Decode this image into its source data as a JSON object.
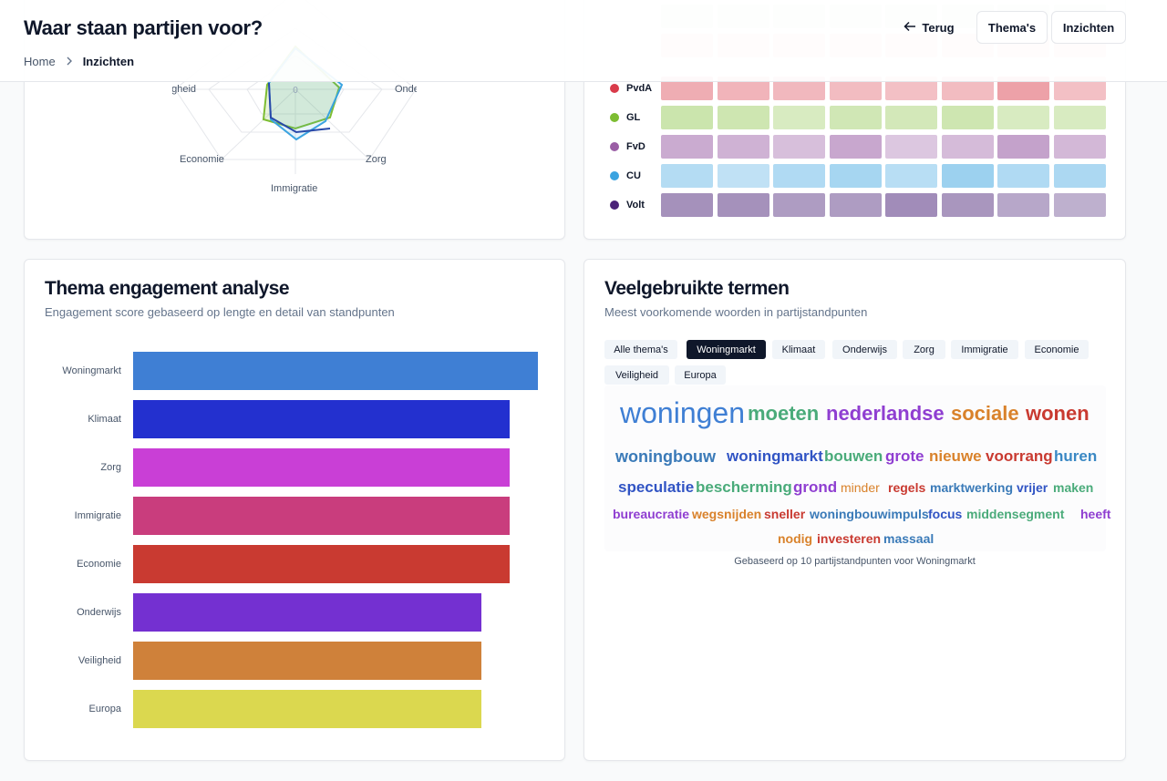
{
  "header": {
    "title": "Waar staan partijen voor?",
    "breadcrumb": {
      "home": "Home",
      "current": "Inzichten"
    },
    "buttons": {
      "back": "Terug",
      "themes": "Thema's",
      "insights": "Inzichten"
    }
  },
  "radar": {
    "axis_labels": {
      "left_top": "Veiligheid",
      "right_top": "Onderwijs",
      "left_bottom": "Economie",
      "right_bottom": "Zorg",
      "bottom": "Immigratie"
    },
    "center_tick": "0"
  },
  "heatmap": {
    "parties": [
      {
        "name": "PvdA",
        "color": "#d93b4a"
      },
      {
        "name": "GL",
        "color": "#7dbd32"
      },
      {
        "name": "FvD",
        "color": "#9a5ea5"
      },
      {
        "name": "CU",
        "color": "#3aa3e0"
      },
      {
        "name": "Volt",
        "color": "#4b2378"
      }
    ]
  },
  "engagement": {
    "title": "Thema engagement analyse",
    "subtitle": "Engagement score gebaseerd op lengte en detail van standpunten",
    "chart_data": {
      "type": "bar",
      "orientation": "horizontal",
      "categories": [
        "Woningmarkt",
        "Klimaat",
        "Zorg",
        "Immigratie",
        "Economie",
        "Onderwijs",
        "Veiligheid",
        "Europa"
      ],
      "values": [
        100,
        93,
        93,
        93,
        93,
        86,
        86,
        86
      ],
      "colors": [
        "#3f7fd4",
        "#2330cf",
        "#c93fd6",
        "#c93d7d",
        "#c93a31",
        "#7430d1",
        "#cf813a",
        "#dbd84f"
      ],
      "xlabel": "",
      "ylabel": ""
    }
  },
  "terms": {
    "title": "Veelgebruikte termen",
    "subtitle": "Meest voorkomende woorden in partijstandpunten",
    "filters": [
      "Alle thema's",
      "Woningmarkt",
      "Klimaat",
      "Onderwijs",
      "Zorg",
      "Immigratie",
      "Economie",
      "Veiligheid",
      "Europa"
    ],
    "active_filter": "Woningmarkt",
    "words": [
      "woningen",
      "moeten",
      "nederlandse",
      "sociale",
      "wonen",
      "woningbouw",
      "woningmarkt",
      "bouwen",
      "grote",
      "nieuwe",
      "voorrang",
      "huren",
      "speculatie",
      "bescherming",
      "grond",
      "minder",
      "regels",
      "marktwerking",
      "vrijer",
      "maken",
      "bureaucratie",
      "wegsnijden",
      "sneller",
      "woningbouwimpuls",
      "focus",
      "middensegment",
      "heeft",
      "nodig",
      "investeren",
      "massaal"
    ],
    "footer": "Gebaseerd op 10 partijstandpunten voor Woningmarkt"
  }
}
